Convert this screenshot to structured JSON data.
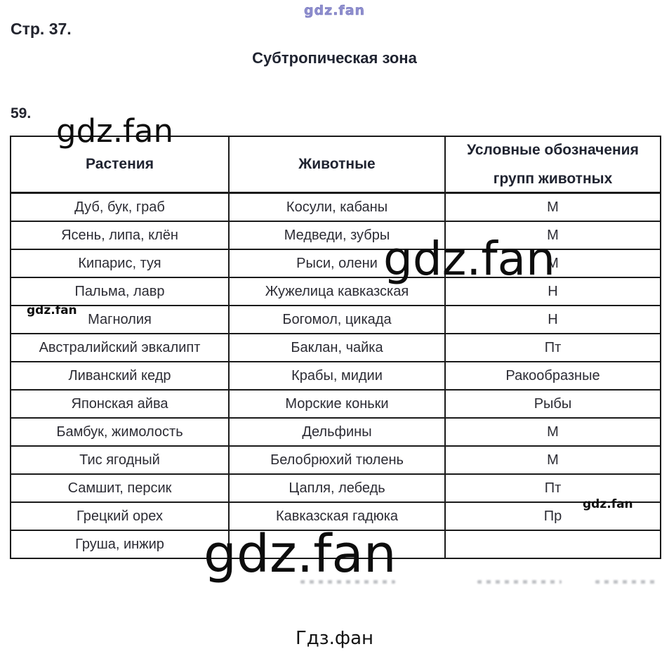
{
  "page": {
    "page_label": "Стр. 37.",
    "section_title": "Субтропическая зона",
    "item_number": "59.",
    "footer_site_label": "Гдз.фан"
  },
  "watermarks": {
    "top": "gdz.fan",
    "table_top_left": "gdz.fan",
    "table_middle": "gdz.fan",
    "small_left": "gdz.fan",
    "small_right": "gdz.fan",
    "table_bottom": "gdz.fan"
  },
  "table": {
    "headers": [
      "Растения",
      "Животные",
      "Условные обозначения групп животных"
    ],
    "header_col3_line1": "Условные обозначения",
    "header_col3_line2": "групп животных",
    "rows": [
      {
        "plants": "Дуб, бук, граб",
        "animals": "Косули, кабаны",
        "group": "М"
      },
      {
        "plants": "Ясень, липа, клён",
        "animals": "Медведи, зубры",
        "group": "М"
      },
      {
        "plants": "Кипарис, туя",
        "animals": "Рыси, олени",
        "group": "М"
      },
      {
        "plants": "Пальма, лавр",
        "animals": "Жужелица кавказская",
        "group": "Н"
      },
      {
        "plants": "Магнолия",
        "animals": "Богомол, цикада",
        "group": "Н"
      },
      {
        "plants": "Австралийский эвкалипт",
        "animals": "Баклан, чайка",
        "group": "Пт"
      },
      {
        "plants": "Ливанский кедр",
        "animals": "Крабы, мидии",
        "group": "Ракообразные"
      },
      {
        "plants": "Японская айва",
        "animals": "Морские коньки",
        "group": "Рыбы"
      },
      {
        "plants": "Бамбук, жимолость",
        "animals": "Дельфины",
        "group": "М"
      },
      {
        "plants": "Тис ягодный",
        "animals": "Белобрюхий тюлень",
        "group": "М"
      },
      {
        "plants": "Самшит, персик",
        "animals": "Цапля, лебедь",
        "group": "Пт"
      },
      {
        "plants": "Грецкий орех",
        "animals": "Кавказская гадюка",
        "group": "Пр"
      },
      {
        "plants": "Груша, инжир",
        "animals": "",
        "group": ""
      }
    ]
  },
  "colors": {
    "text": "#26262e",
    "border": "#1a1a1a",
    "watermark_light": "#8f8fce",
    "watermark_dark": "#0d0d0d"
  }
}
